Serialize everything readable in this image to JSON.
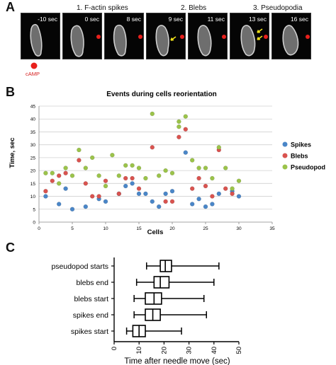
{
  "panels": {
    "a": "A",
    "b": "B",
    "c": "C"
  },
  "panel_a": {
    "phases": [
      "1. F-actin spikes",
      "2. Blebs",
      "3. Pseudopodia"
    ],
    "frames": [
      {
        "time": "-10 sec",
        "red_marker": false,
        "arrows": 0
      },
      {
        "time": "0 sec",
        "red_marker": true,
        "arrows": 0
      },
      {
        "time": "8 sec",
        "red_marker": true,
        "arrows": 0
      },
      {
        "time": "9 sec",
        "red_marker": true,
        "arrows": 1
      },
      {
        "time": "11 sec",
        "red_marker": true,
        "arrows": 0
      },
      {
        "time": "13 sec",
        "red_marker": true,
        "arrows": 2
      },
      {
        "time": "16 sec",
        "red_marker": true,
        "arrows": 0
      }
    ],
    "camp_label": "cAMP",
    "colors": {
      "marker": "#e8201c",
      "arrow": "#f2e21a",
      "cell": "#cfcfcf"
    }
  },
  "chart_data": [
    {
      "type": "scatter",
      "title": "Events during cells reorientation",
      "xlabel": "Cells",
      "ylabel": "Time, sec",
      "xlim": [
        0,
        35
      ],
      "ylim": [
        0,
        45
      ],
      "xticks": [
        0,
        5,
        10,
        15,
        20,
        25,
        30,
        35
      ],
      "yticks": [
        0,
        5,
        10,
        15,
        20,
        25,
        30,
        35,
        40,
        45
      ],
      "grid": true,
      "legend": "right",
      "series": [
        {
          "name": "Spikes",
          "color": "#4a86c8",
          "points": [
            [
              1,
              10
            ],
            [
              3,
              7
            ],
            [
              4,
              13
            ],
            [
              5,
              5
            ],
            [
              7,
              6
            ],
            [
              9,
              9
            ],
            [
              10,
              8
            ],
            [
              12,
              11
            ],
            [
              13,
              14
            ],
            [
              14,
              15
            ],
            [
              15,
              11
            ],
            [
              16,
              11
            ],
            [
              17,
              8
            ],
            [
              18,
              6
            ],
            [
              19,
              11
            ],
            [
              20,
              12
            ],
            [
              22,
              27
            ],
            [
              23,
              7
            ],
            [
              24,
              9
            ],
            [
              25,
              6
            ],
            [
              26,
              7
            ],
            [
              27,
              11
            ],
            [
              29,
              12
            ],
            [
              30,
              10
            ]
          ]
        },
        {
          "name": "Blebs",
          "color": "#d9534f",
          "points": [
            [
              1,
              12
            ],
            [
              2,
              16
            ],
            [
              3,
              18
            ],
            [
              4,
              19
            ],
            [
              6,
              24
            ],
            [
              7,
              15
            ],
            [
              8,
              10
            ],
            [
              9,
              10
            ],
            [
              10,
              16
            ],
            [
              12,
              11
            ],
            [
              13,
              17
            ],
            [
              14,
              17
            ],
            [
              15,
              13
            ],
            [
              17,
              29
            ],
            [
              19,
              8
            ],
            [
              20,
              8
            ],
            [
              21,
              33
            ],
            [
              22,
              36
            ],
            [
              23,
              13
            ],
            [
              24,
              17
            ],
            [
              25,
              14
            ],
            [
              26,
              10
            ],
            [
              27,
              28
            ],
            [
              28,
              13
            ],
            [
              29,
              11
            ]
          ]
        },
        {
          "name": "Pseudopod",
          "color": "#9bc34a",
          "points": [
            [
              1,
              19
            ],
            [
              2,
              19
            ],
            [
              3,
              15
            ],
            [
              4,
              21
            ],
            [
              5,
              18
            ],
            [
              6,
              28
            ],
            [
              7,
              21
            ],
            [
              8,
              25
            ],
            [
              9,
              18
            ],
            [
              10,
              14
            ],
            [
              11,
              26
            ],
            [
              12,
              18
            ],
            [
              13,
              22
            ],
            [
              14,
              22
            ],
            [
              15,
              21
            ],
            [
              16,
              17
            ],
            [
              17,
              42
            ],
            [
              18,
              18
            ],
            [
              19,
              20
            ],
            [
              20,
              19
            ],
            [
              21,
              37
            ],
            [
              22,
              41
            ],
            [
              21,
              39
            ],
            [
              23,
              24
            ],
            [
              24,
              21
            ],
            [
              25,
              21
            ],
            [
              26,
              17
            ],
            [
              27,
              29
            ],
            [
              28,
              21
            ],
            [
              29,
              13
            ],
            [
              30,
              16
            ]
          ]
        }
      ]
    },
    {
      "type": "boxplot",
      "xlabel": "Time after needle move (sec)",
      "xlim": [
        0,
        50
      ],
      "xticks": [
        0,
        10,
        20,
        30,
        40,
        50
      ],
      "categories": [
        "pseudopod starts",
        "blebs end",
        "blebs start",
        "spikes end",
        "spikes start"
      ],
      "boxes": [
        {
          "label": "pseudopod starts",
          "min": 13,
          "q1": 18.5,
          "median": 20.5,
          "q3": 23,
          "max": 42
        },
        {
          "label": "blebs end",
          "min": 9,
          "q1": 16,
          "median": 18.5,
          "q3": 22,
          "max": 40
        },
        {
          "label": "blebs start",
          "min": 8,
          "q1": 12.5,
          "median": 16,
          "q3": 19,
          "max": 36
        },
        {
          "label": "spikes end",
          "min": 8,
          "q1": 12.5,
          "median": 15.5,
          "q3": 18.5,
          "max": 37
        },
        {
          "label": "spikes start",
          "min": 5,
          "q1": 7.5,
          "median": 10,
          "q3": 12.5,
          "max": 27
        }
      ]
    }
  ]
}
